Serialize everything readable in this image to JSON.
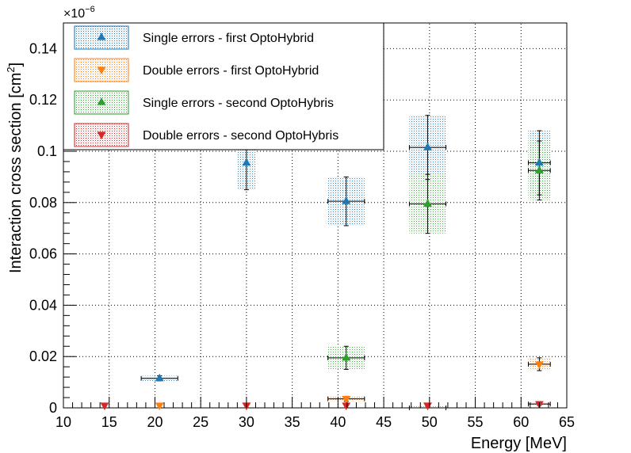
{
  "chart_data": {
    "type": "scatter",
    "title": "",
    "xlabel": "Energy [MeV]",
    "ylabel_main": "Interaction cross section [cm",
    "ylabel_sup": "2",
    "ylabel_close": "]",
    "y_exponent_base": "×10",
    "y_exponent_power": "−6",
    "xlim": [
      10,
      65
    ],
    "ylim": [
      0,
      0.15
    ],
    "x_ticks": [
      10,
      15,
      20,
      25,
      30,
      35,
      40,
      45,
      50,
      55,
      60,
      65
    ],
    "x_tick_labels": [
      "10",
      "15",
      "20",
      "25",
      "30",
      "35",
      "40",
      "45",
      "50",
      "55",
      "60",
      "65"
    ],
    "y_ticks": [
      0,
      0.02,
      0.04,
      0.06,
      0.08,
      0.1,
      0.12,
      0.14
    ],
    "y_tick_labels": [
      "0",
      "0.02",
      "0.04",
      "0.06",
      "0.08",
      "0.1",
      "0.12",
      "0.14"
    ],
    "grid": true,
    "legend_position": "top-left",
    "series": [
      {
        "name": "Single errors - first OptoHybrid",
        "marker": "triangle-up",
        "color": "#1f77b4",
        "fill_color": "#a7c4dd",
        "points": [
          {
            "x": 20.5,
            "y": 0.0115,
            "xerr": 2.0,
            "yerr": 0.001,
            "sys": 0.001
          },
          {
            "x": 30.0,
            "y": 0.0955,
            "xerr": 0.0,
            "yerr": 0.0105,
            "sys": 0.0105
          },
          {
            "x": 40.9,
            "y": 0.0805,
            "xerr": 2.0,
            "yerr": 0.0095,
            "sys": 0.0095
          },
          {
            "x": 49.8,
            "y": 0.1015,
            "xerr": 2.0,
            "yerr": 0.0125,
            "sys": 0.0125
          },
          {
            "x": 62.0,
            "y": 0.0955,
            "xerr": 1.2,
            "yerr": 0.0125,
            "sys": 0.0125
          }
        ]
      },
      {
        "name": "Double errors - first OptoHybrid",
        "marker": "triangle-down",
        "color": "#ff7f0e",
        "fill_color": "#f5c89a",
        "points": [
          {
            "x": 20.5,
            "y": 0.0,
            "xerr": 0.0,
            "yerr": 0.0,
            "sys": 0.0
          },
          {
            "x": 30.0,
            "y": 0.0,
            "xerr": 0.0,
            "yerr": 0.0,
            "sys": 0.0
          },
          {
            "x": 40.9,
            "y": 0.0035,
            "xerr": 2.0,
            "yerr": 0.001,
            "sys": 0.001
          },
          {
            "x": 49.8,
            "y": 0.0,
            "xerr": 0.0,
            "yerr": 0.0,
            "sys": 0.0
          },
          {
            "x": 62.0,
            "y": 0.017,
            "xerr": 1.2,
            "yerr": 0.0025,
            "sys": 0.0025
          }
        ]
      },
      {
        "name": "Single errors - second OptoHybris",
        "marker": "triangle-up",
        "color": "#2ca02c",
        "fill_color": "#a6d3a6",
        "points": [
          {
            "x": 40.9,
            "y": 0.0195,
            "xerr": 2.0,
            "yerr": 0.0045,
            "sys": 0.0045
          },
          {
            "x": 49.8,
            "y": 0.0795,
            "xerr": 2.0,
            "yerr": 0.0115,
            "sys": 0.0115
          },
          {
            "x": 62.0,
            "y": 0.0925,
            "xerr": 1.2,
            "yerr": 0.0115,
            "sys": 0.0115
          }
        ]
      },
      {
        "name": "Double errors - second OptoHybris",
        "marker": "triangle-down",
        "color": "#d62728",
        "fill_color": "#eaa3a3",
        "points": [
          {
            "x": 14.5,
            "y": 0.0,
            "xerr": 0.0,
            "yerr": 0.0,
            "sys": 0.0
          },
          {
            "x": 30.0,
            "y": 0.0,
            "xerr": 0.0,
            "yerr": 0.0,
            "sys": 0.0
          },
          {
            "x": 40.9,
            "y": 0.0,
            "xerr": 0.0,
            "yerr": 0.0,
            "sys": 0.0
          },
          {
            "x": 49.8,
            "y": 0.0,
            "xerr": 2.0,
            "yerr": 0.0005,
            "sys": 0.0005
          },
          {
            "x": 62.0,
            "y": 0.0015,
            "xerr": 1.2,
            "yerr": 0.0005,
            "sys": 0.0005
          }
        ]
      }
    ]
  }
}
